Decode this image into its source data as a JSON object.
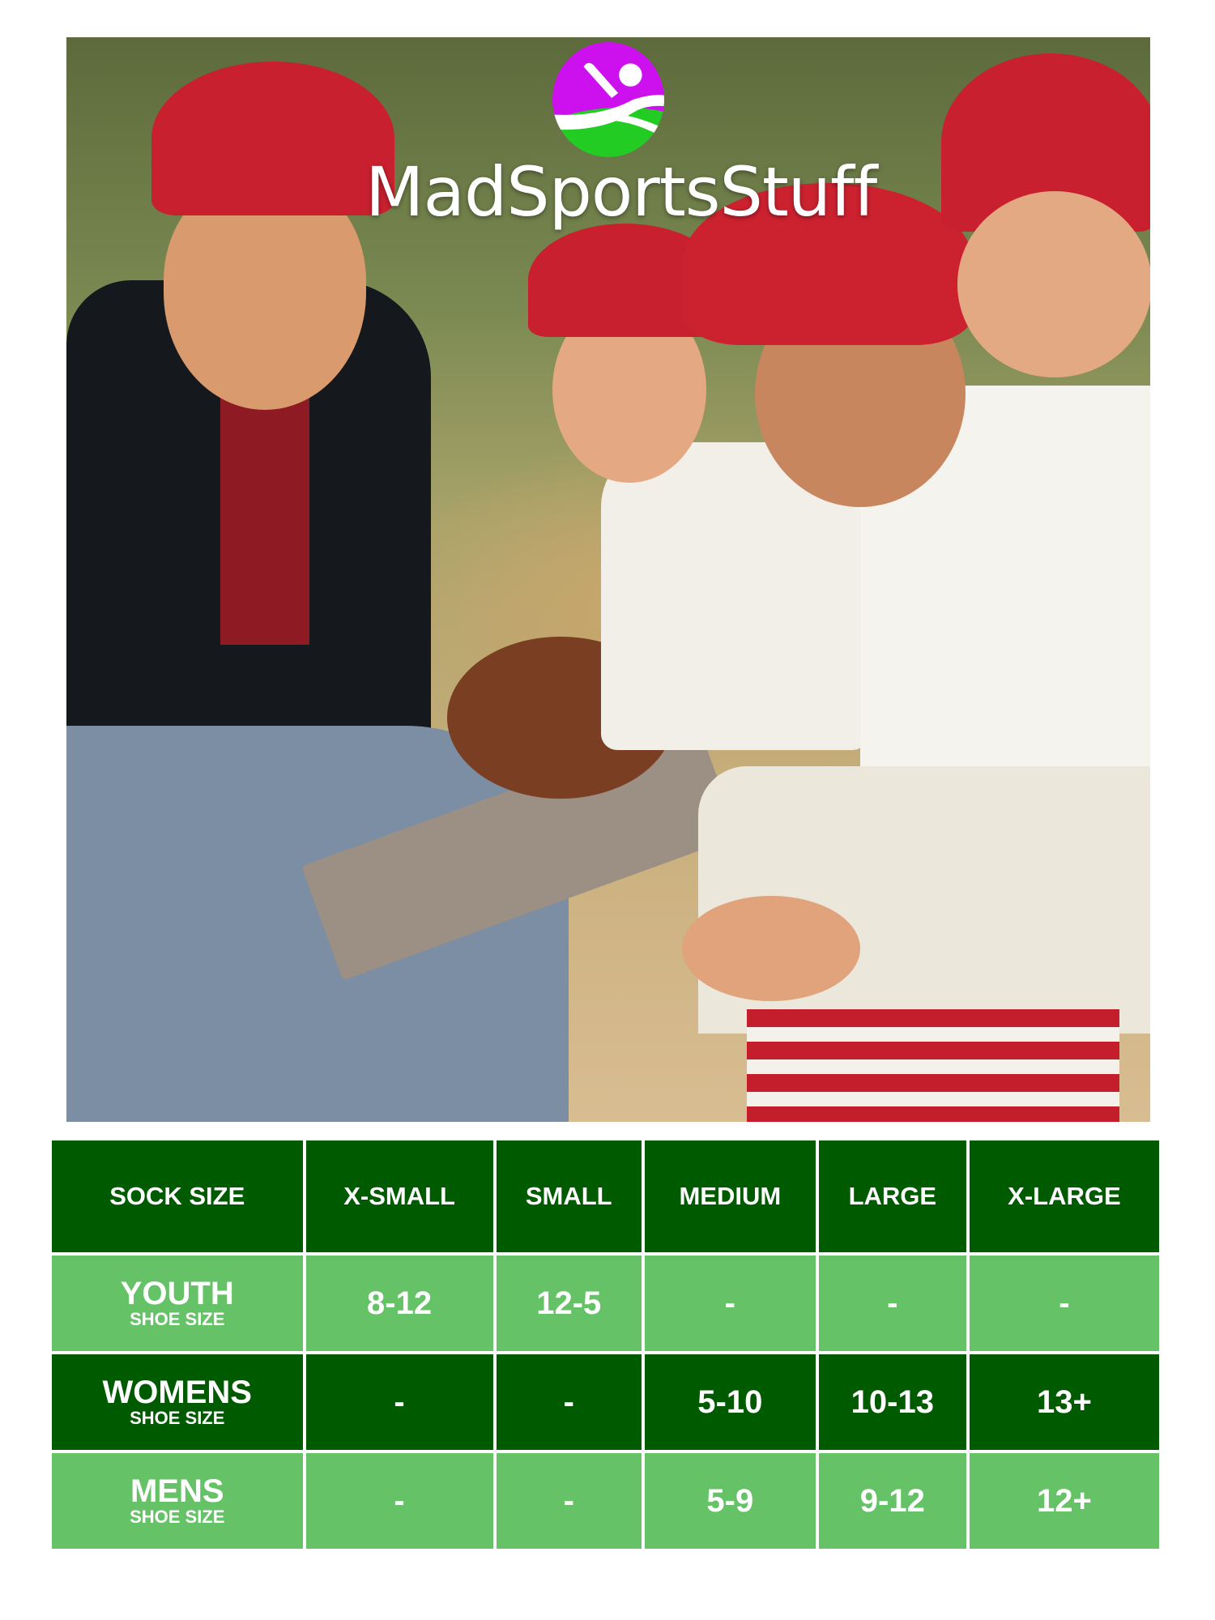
{
  "brand": {
    "name": "MadSportsStuff",
    "colors": {
      "purple": "#cc11ee",
      "green": "#22cc22"
    },
    "logo_icon": "batter-swinging-icon"
  },
  "photo": {
    "subject": "coach-with-youth-baseball-players"
  },
  "size_chart": {
    "colors": {
      "dark": "#005a00",
      "light": "#66c266"
    },
    "header": [
      "SOCK SIZE",
      "X-SMALL",
      "SMALL",
      "MEDIUM",
      "LARGE",
      "X-LARGE"
    ],
    "rows": [
      {
        "label": "YOUTH",
        "sub": "SHOE SIZE",
        "values": [
          "8-12",
          "12-5",
          "-",
          "-",
          "-"
        ]
      },
      {
        "label": "WOMENS",
        "sub": "SHOE SIZE",
        "values": [
          "-",
          "-",
          "5-10",
          "10-13",
          "13+"
        ]
      },
      {
        "label": "MENS",
        "sub": "SHOE SIZE",
        "values": [
          "-",
          "-",
          "5-9",
          "9-12",
          "12+"
        ]
      }
    ]
  }
}
